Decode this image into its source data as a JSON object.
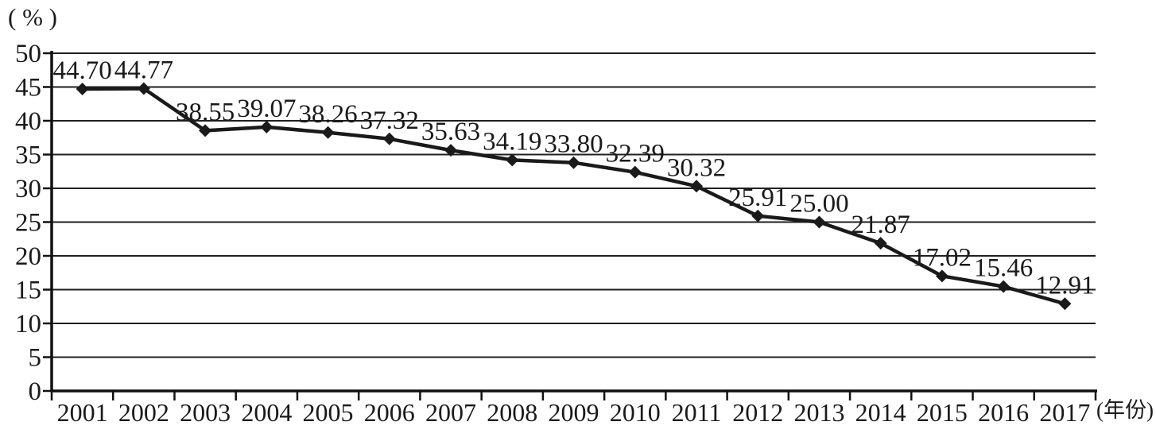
{
  "chart_data": {
    "type": "line",
    "title": "",
    "ylabel": "( % )",
    "xlabel": "(年份)",
    "categories": [
      "2001",
      "2002",
      "2003",
      "2004",
      "2005",
      "2006",
      "2007",
      "2008",
      "2009",
      "2010",
      "2011",
      "2012",
      "2013",
      "2014",
      "2015",
      "2016",
      "2017"
    ],
    "series": [
      {
        "name": "",
        "values": [
          44.7,
          44.77,
          38.55,
          39.07,
          38.26,
          37.32,
          35.63,
          34.19,
          33.8,
          32.39,
          30.32,
          25.91,
          25.0,
          21.87,
          17.02,
          15.46,
          12.91
        ],
        "labels": [
          "44.70",
          "44.77",
          "38.55",
          "39.07",
          "38.26",
          "37.32",
          "35.63",
          "34.19",
          "33.80",
          "32.39",
          "30.32",
          "25.91",
          "25.00",
          "21.87",
          "17.02",
          "15.46",
          "12.91"
        ]
      }
    ],
    "ylim": [
      0,
      50
    ],
    "ytick_step": 5,
    "yticks": [
      "0",
      "5",
      "10",
      "15",
      "20",
      "25",
      "30",
      "35",
      "40",
      "45",
      "50"
    ],
    "grid": "horizontal",
    "legend": "none",
    "marker": "diamond",
    "colors": {
      "line": "#1a1a1a",
      "marker": "#1a1a1a",
      "text": "#1a1a1a",
      "grid": "#1f1f1f",
      "axis": "#111111",
      "background": "#ffffff"
    }
  }
}
